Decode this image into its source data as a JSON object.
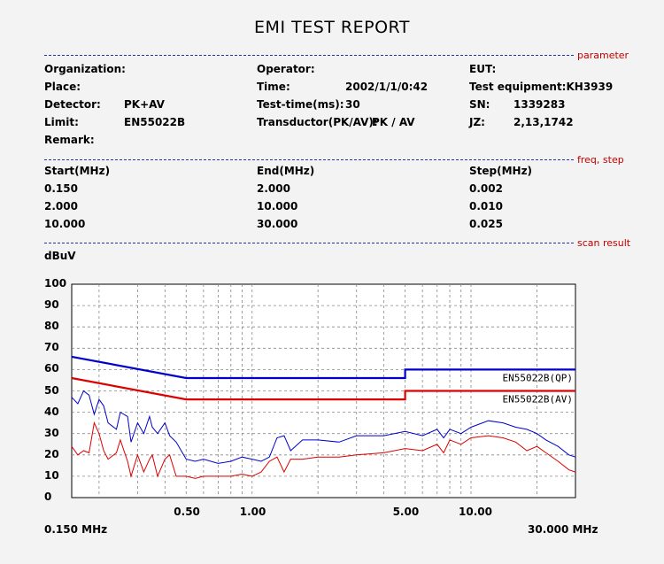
{
  "title": "EMI TEST REPORT",
  "sections": {
    "parameter": "parameter",
    "freq_step": "freq, step",
    "scan_result": "scan result"
  },
  "parameter": {
    "organization_label": "Organization:",
    "operator_label": "Operator:",
    "eut_label": "EUT:",
    "place_label": "Place:",
    "time_label": "Time:",
    "time_value": "2002/1/1/0:42",
    "test_equipment_label": "Test equipment:KH3939",
    "detector_label": "Detector:",
    "detector_value": "PK+AV",
    "test_time_label": "Test-time(ms):",
    "test_time_value": "30",
    "sn_label": "SN:",
    "sn_value": "1339283",
    "limit_label": "Limit:",
    "limit_value": "EN55022B",
    "transductor_label": "Transductor(PK/AV):",
    "transductor_value": "PK  /  AV",
    "jz_label": "JZ:",
    "jz_value": "2,13,1742",
    "remark_label": "Remark:"
  },
  "freq_step": {
    "headers": [
      "Start(MHz)",
      "End(MHz)",
      "Step(MHz)"
    ],
    "rows": [
      [
        "0.150",
        "2.000",
        "0.002"
      ],
      [
        "2.000",
        "10.000",
        "0.010"
      ],
      [
        "10.000",
        "30.000",
        "0.025"
      ]
    ]
  },
  "chart_data": {
    "type": "line",
    "ylabel": "dBuV",
    "ylim": [
      0,
      100
    ],
    "yticks": [
      "0",
      "10",
      "20",
      "30",
      "40",
      "50",
      "60",
      "70",
      "80",
      "90",
      "100"
    ],
    "xscale": "log",
    "xlim": [
      0.15,
      30
    ],
    "xticks": [
      {
        "value": 0.5,
        "label": "0.50"
      },
      {
        "value": 1,
        "label": "1.00"
      },
      {
        "value": 5,
        "label": "5.00"
      },
      {
        "value": 10,
        "label": "10.00"
      }
    ],
    "x_start_label": "0.150 MHz",
    "x_end_label": "30.000 MHz",
    "grid": true,
    "limit_lines": [
      {
        "name": "EN55022B(QP)",
        "color": "#0000cc",
        "x": [
          0.15,
          0.5,
          5,
          5,
          30
        ],
        "y": [
          66,
          56,
          56,
          60,
          60
        ]
      },
      {
        "name": "EN55022B(AV)",
        "color": "#dd0000",
        "x": [
          0.15,
          0.5,
          5,
          5,
          30
        ],
        "y": [
          56,
          46,
          46,
          50,
          50
        ]
      }
    ],
    "series": [
      {
        "color": "#0000cc",
        "x": [
          0.15,
          0.16,
          0.17,
          0.18,
          0.19,
          0.2,
          0.21,
          0.22,
          0.24,
          0.25,
          0.27,
          0.28,
          0.3,
          0.32,
          0.34,
          0.35,
          0.37,
          0.4,
          0.42,
          0.45,
          0.5,
          0.55,
          0.6,
          0.7,
          0.8,
          0.9,
          1.0,
          1.1,
          1.2,
          1.3,
          1.4,
          1.5,
          1.7,
          2.0,
          2.5,
          3.0,
          4.0,
          5.0,
          6.0,
          7.0,
          7.5,
          8.0,
          9.0,
          10.0,
          12.0,
          14.0,
          16.0,
          18.0,
          20.0,
          22.0,
          25.0,
          28.0,
          30.0
        ],
        "y": [
          47,
          44,
          50,
          48,
          39,
          46,
          43,
          35,
          32,
          40,
          38,
          26,
          35,
          30,
          38,
          33,
          30,
          35,
          29,
          26,
          18,
          17,
          18,
          16,
          17,
          19,
          18,
          17,
          19,
          28,
          29,
          22,
          27,
          27,
          26,
          29,
          29,
          31,
          29,
          32,
          28,
          32,
          30,
          33,
          36,
          35,
          33,
          32,
          30,
          27,
          24,
          20,
          19
        ]
      },
      {
        "color": "#dd0000",
        "x": [
          0.15,
          0.16,
          0.17,
          0.18,
          0.19,
          0.2,
          0.21,
          0.22,
          0.24,
          0.25,
          0.27,
          0.28,
          0.3,
          0.32,
          0.34,
          0.35,
          0.37,
          0.4,
          0.42,
          0.45,
          0.5,
          0.55,
          0.6,
          0.7,
          0.8,
          0.9,
          1.0,
          1.1,
          1.2,
          1.3,
          1.4,
          1.5,
          1.7,
          2.0,
          2.5,
          3.0,
          4.0,
          5.0,
          6.0,
          7.0,
          7.5,
          8.0,
          9.0,
          10.0,
          12.0,
          14.0,
          16.0,
          18.0,
          20.0,
          22.0,
          25.0,
          28.0,
          30.0
        ],
        "y": [
          24,
          20,
          22,
          21,
          35,
          30,
          22,
          18,
          21,
          27,
          17,
          10,
          20,
          12,
          18,
          20,
          10,
          18,
          20,
          10,
          10,
          9,
          10,
          10,
          10,
          11,
          10,
          12,
          17,
          19,
          12,
          18,
          18,
          19,
          19,
          20,
          21,
          23,
          22,
          25,
          21,
          27,
          25,
          28,
          29,
          28,
          26,
          22,
          24,
          21,
          17,
          13,
          12
        ]
      }
    ]
  }
}
